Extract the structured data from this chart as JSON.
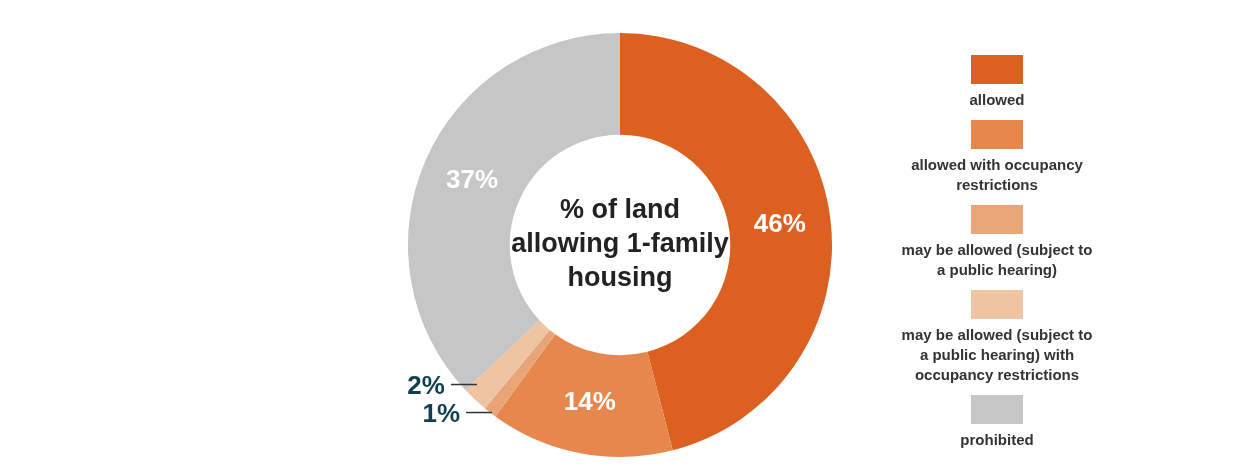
{
  "chart_data": {
    "type": "donut",
    "title": "% of land allowing 1-family housing",
    "categories": [
      "allowed",
      "allowed with occupancy restrictions",
      "may be allowed (subject to a public hearing)",
      "may be allowed (subject to a public hearing) with occupancy restrictions",
      "prohibited"
    ],
    "values": [
      46,
      14,
      1,
      2,
      37
    ],
    "colors": [
      "#dc6020",
      "#e6874e",
      "#e8a578",
      "#efc4a2",
      "#c6c6c6"
    ],
    "value_labels": [
      "46%",
      "14%",
      "1%",
      "2%",
      "37%"
    ],
    "legend": "right"
  }
}
